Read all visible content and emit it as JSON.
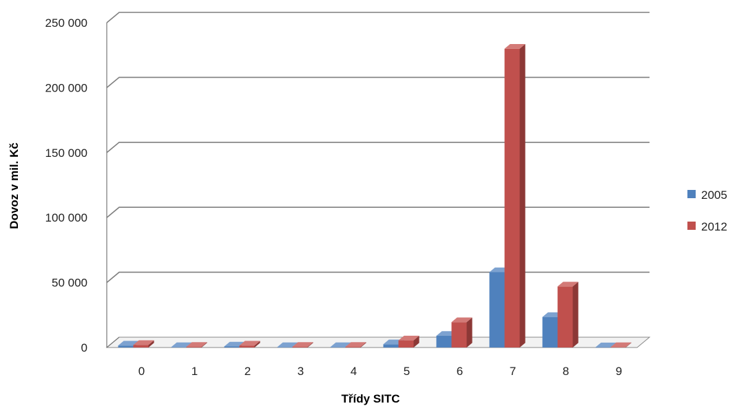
{
  "chart_data": {
    "type": "bar",
    "categories": [
      "0",
      "1",
      "2",
      "3",
      "4",
      "5",
      "6",
      "7",
      "8",
      "9"
    ],
    "series": [
      {
        "name": "2005",
        "color": "#4f81bd",
        "side": "#385d8a",
        "top": "#7da2d0",
        "values": [
          1500,
          300,
          800,
          300,
          300,
          2500,
          9000,
          58000,
          23500,
          200
        ]
      },
      {
        "name": "2012",
        "color": "#c0504d",
        "side": "#8c3836",
        "top": "#d37a77",
        "values": [
          2000,
          500,
          1500,
          500,
          500,
          5500,
          19500,
          230000,
          47000,
          300
        ]
      }
    ],
    "ylabel": "Dovoz  v mil. Kč",
    "xlabel": "Třídy SITC",
    "ylim": [
      0,
      250000
    ],
    "yticks": [
      0,
      50000,
      100000,
      150000,
      200000,
      250000
    ],
    "ytick_labels": [
      "0",
      "50 000",
      "100 000",
      "150 000",
      "200 000",
      "250 000"
    ],
    "grid": true,
    "legend": "right",
    "style": "3d-clustered-column"
  }
}
